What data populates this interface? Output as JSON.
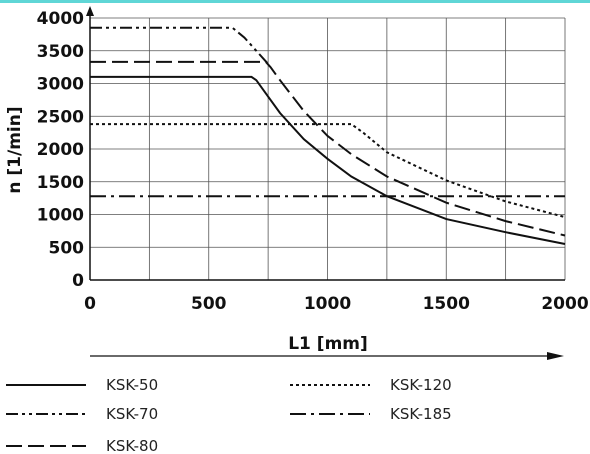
{
  "colors": {
    "accent": "#5fd6d6",
    "line": "#111111",
    "grid": "#555555"
  },
  "chart_data": {
    "type": "line",
    "title": "",
    "xlabel": "L1 [mm]",
    "ylabel": "n [1/min]",
    "xlim": [
      0,
      2000
    ],
    "ylim": [
      0,
      4000
    ],
    "xticks": [
      0,
      500,
      1000,
      1500,
      2000
    ],
    "yticks": [
      0,
      500,
      1000,
      1500,
      2000,
      2500,
      3000,
      3500,
      4000
    ],
    "grid": true,
    "legend_position": "bottom",
    "series": [
      {
        "name": "KSK-50",
        "dash": "solid",
        "x": [
          0,
          680,
          700,
          750,
          800,
          900,
          1000,
          1100,
          1250,
          1500,
          1750,
          2000
        ],
        "y": [
          3100,
          3100,
          3050,
          2800,
          2550,
          2150,
          1850,
          1580,
          1280,
          930,
          730,
          550
        ]
      },
      {
        "name": "KSK-70",
        "dash": "dash-dot-dot",
        "x": [
          0,
          600,
          650,
          700,
          750
        ],
        "y": [
          3850,
          3850,
          3700,
          3500,
          3300
        ]
      },
      {
        "name": "KSK-80",
        "dash": "dash",
        "x": [
          0,
          740,
          760,
          800,
          900,
          1000,
          1100,
          1250,
          1500,
          1750,
          2000
        ],
        "y": [
          3330,
          3330,
          3250,
          3050,
          2580,
          2200,
          1920,
          1580,
          1180,
          900,
          680
        ]
      },
      {
        "name": "KSK-120",
        "dash": "dot",
        "x": [
          0,
          1100,
          1150,
          1250,
          1500,
          1750,
          2000
        ],
        "y": [
          2380,
          2380,
          2250,
          1950,
          1520,
          1200,
          960
        ]
      },
      {
        "name": "KSK-185",
        "dash": "dash-dot",
        "x": [
          0,
          2000
        ],
        "y": [
          1280,
          1280
        ]
      }
    ]
  }
}
